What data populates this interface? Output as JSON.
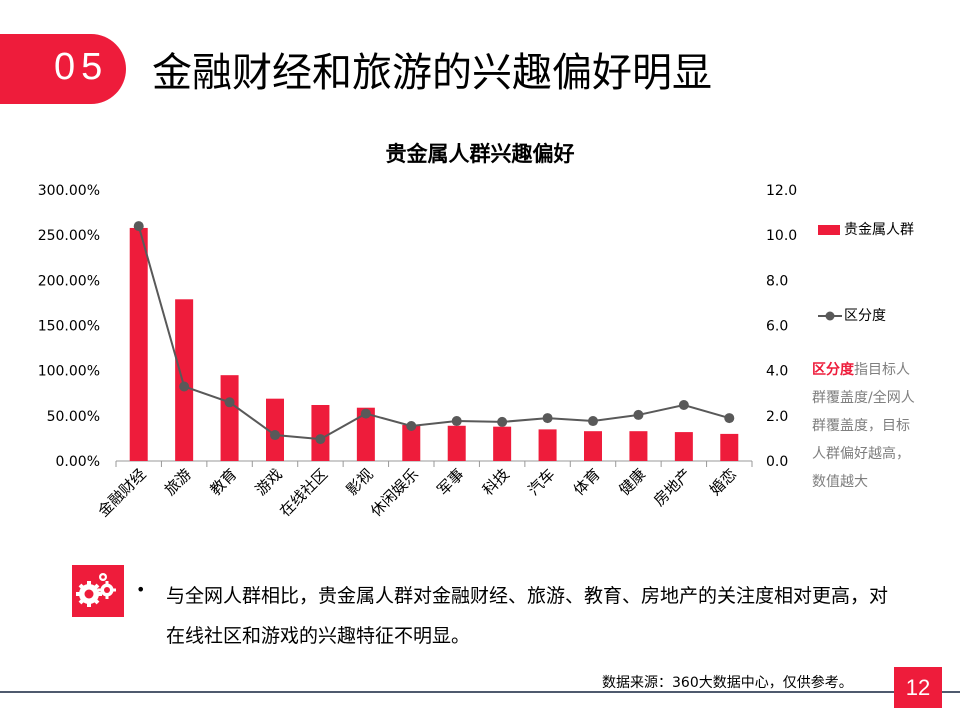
{
  "header": {
    "section_number": "05",
    "title": "金融财经和旅游的兴趣偏好明显"
  },
  "chart_data": {
    "type": "bar+line",
    "title": "贵金属人群兴趣偏好",
    "categories": [
      "金融财经",
      "旅游",
      "教育",
      "游戏",
      "在线社区",
      "影视",
      "休闲娱乐",
      "军事",
      "科技",
      "汽车",
      "体育",
      "健康",
      "房地产",
      "婚恋"
    ],
    "series": [
      {
        "name": "贵金属人群",
        "type": "bar",
        "axis": "left",
        "color": "#ee1c3b",
        "values": [
          258,
          179,
          95,
          69,
          62,
          59,
          40,
          39,
          38,
          35,
          33,
          33,
          32,
          30
        ]
      },
      {
        "name": "区分度",
        "type": "line",
        "axis": "right",
        "color": "#595959",
        "values": [
          10.4,
          3.3,
          2.6,
          1.15,
          0.97,
          2.1,
          1.55,
          1.77,
          1.73,
          1.9,
          1.77,
          2.04,
          2.48,
          1.9
        ]
      }
    ],
    "y_left": {
      "range": [
        0,
        300
      ],
      "unit": "%",
      "ticks": [
        "0.00%",
        "50.00%",
        "100.00%",
        "150.00%",
        "200.00%",
        "250.00%",
        "300.00%"
      ]
    },
    "y_right": {
      "range": [
        0,
        12
      ],
      "ticks": [
        "0.0",
        "2.0",
        "4.0",
        "6.0",
        "8.0",
        "10.0",
        "12.0"
      ]
    },
    "legend_position": "right",
    "grid": false
  },
  "annotation": {
    "term": "区分度",
    "text": "指目标人群覆盖度/全网人群覆盖度，目标人群偏好越高，数值越大"
  },
  "summary": {
    "bullet": "•",
    "text": "与全网人群相比，贵金属人群对金融财经、旅游、教育、房地产的关注度相对更高，对在线社区和游戏的兴趣特征不明显。",
    "icon": "gears-icon"
  },
  "footer": {
    "source": "数据来源：360大数据中心，仅供参考。",
    "page_number": "12"
  }
}
